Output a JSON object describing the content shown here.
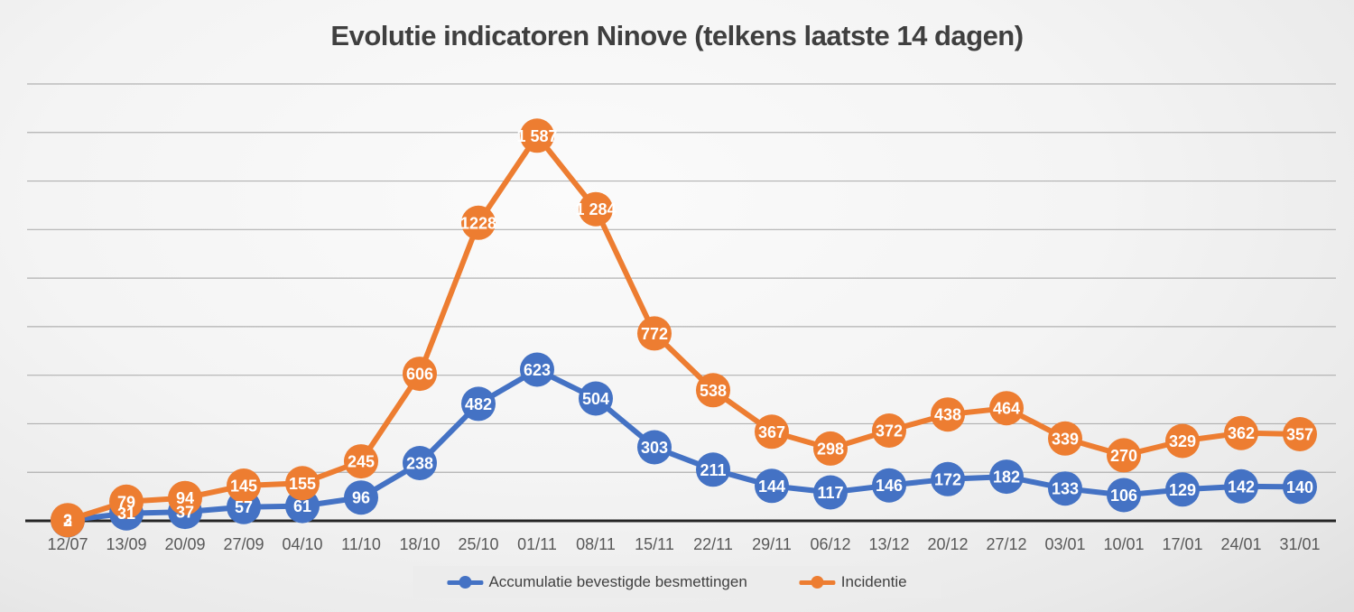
{
  "chart_data": {
    "type": "line",
    "title": "Evolutie indicatoren Ninove (telkens laatste 14 dagen)",
    "categories": [
      "12/07",
      "13/09",
      "20/09",
      "27/09",
      "04/10",
      "11/10",
      "18/10",
      "25/10",
      "01/11",
      "08/11",
      "15/11",
      "22/11",
      "29/11",
      "06/12",
      "13/12",
      "20/12",
      "27/12",
      "03/01",
      "10/01",
      "17/01",
      "24/01",
      "31/01"
    ],
    "series": [
      {
        "name": "Accumulatie bevestigde besmettingen",
        "color": "#4472C4",
        "values": [
          2,
          31,
          37,
          57,
          61,
          96,
          238,
          482,
          623,
          504,
          303,
          211,
          144,
          117,
          146,
          172,
          182,
          133,
          106,
          129,
          142,
          140
        ],
        "labels": [
          "2",
          "31",
          "37",
          "57",
          "61",
          "96",
          "238",
          "482",
          "623",
          "504",
          "303",
          "211",
          "144",
          "117",
          "146",
          "172",
          "182",
          "133",
          "106",
          "129",
          "142",
          "140"
        ]
      },
      {
        "name": "Incidentie",
        "color": "#ED7D31",
        "values": [
          3,
          79,
          94,
          145,
          155,
          245,
          606,
          1228,
          1587,
          1284,
          772,
          538,
          367,
          298,
          372,
          438,
          464,
          339,
          270,
          329,
          362,
          357
        ],
        "labels": [
          "3",
          "79",
          "94",
          "145",
          "155",
          "245",
          "606",
          "1228",
          "1 587",
          "1 284",
          "772",
          "538",
          "367",
          "298",
          "372",
          "438",
          "464",
          "339",
          "270",
          "329",
          "362",
          "357"
        ]
      }
    ],
    "xlabel": "",
    "ylabel": "",
    "ylim": [
      0,
      1800
    ],
    "gridline_step": 200,
    "grid": true,
    "y_axis_labels_visible": false,
    "legend_position": "bottom",
    "data_labels": "centered-in-marker"
  },
  "colors": {
    "gridline": "#A6A6A6",
    "axis_line": "#262626",
    "tick_text": "#595959",
    "title_text": "#3F3F3F",
    "label_text": "#FFFFFF",
    "legend_bg": "#ECECEC"
  }
}
